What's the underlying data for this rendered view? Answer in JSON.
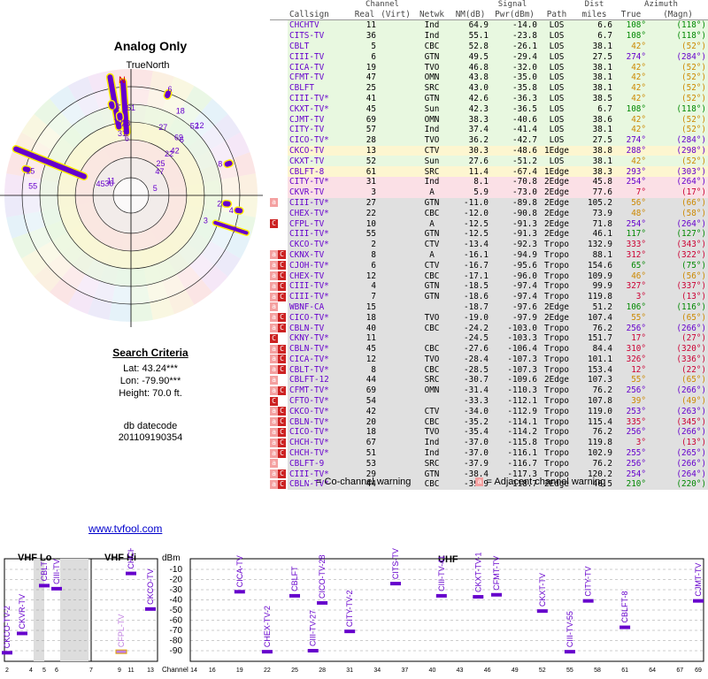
{
  "left": {
    "title": "Analog Only",
    "true_north": "TrueNorth",
    "north_letter": "N",
    "search_criteria": {
      "heading": "Search Criteria",
      "lat": "Lat: 43.24***",
      "lon": "Lon: -79.90***",
      "height": "Height: 70.0 ft."
    },
    "db_datecode_label": "db datecode",
    "db_datecode_value": "201109190354",
    "link": "www.tvfool.com"
  },
  "polar_labels": [
    {
      "t": "7",
      "az": 108,
      "r": 0.86
    },
    {
      "t": "3",
      "az": 108,
      "r": 0.62
    },
    {
      "t": "4",
      "az": 98,
      "r": 0.8
    },
    {
      "t": "2",
      "az": 95,
      "r": 0.7
    },
    {
      "t": "8",
      "az": 70,
      "r": 0.75
    },
    {
      "t": "52",
      "az": 42,
      "r": 0.75
    },
    {
      "t": "12",
      "az": 44,
      "r": 0.78
    },
    {
      "t": "6",
      "az": 42,
      "r": 0.6
    },
    {
      "t": "69",
      "az": 39,
      "r": 0.6
    },
    {
      "t": "42",
      "az": 44,
      "r": 0.5
    },
    {
      "t": "22",
      "az": 42,
      "r": 0.45
    },
    {
      "t": "18",
      "az": 30,
      "r": 0.78
    },
    {
      "t": "25",
      "az": 42,
      "r": 0.35
    },
    {
      "t": "27",
      "az": 25,
      "r": 0.6
    },
    {
      "t": "47",
      "az": 49,
      "r": 0.3
    },
    {
      "t": "6",
      "az": 20,
      "r": 0.9
    },
    {
      "t": "5",
      "az": 72,
      "r": 0.2
    },
    {
      "t": "61",
      "az": 0,
      "r": 0.7
    },
    {
      "t": "13",
      "az": -10,
      "r": 0.72
    },
    {
      "t": "28",
      "az": -4,
      "r": 0.58
    },
    {
      "t": "6",
      "az": -4,
      "r": 0.46
    },
    {
      "t": "11",
      "az": -52,
      "r": 0.2
    },
    {
      "t": "36",
      "az": -60,
      "r": 0.2
    },
    {
      "t": "45",
      "az": -68,
      "r": 0.26
    },
    {
      "t": "15",
      "az": -76,
      "r": 0.82
    },
    {
      "t": "55",
      "az": -84,
      "r": 0.78
    },
    {
      "t": "10",
      "az": -10,
      "r": 0.6
    },
    {
      "t": "31",
      "az": -8,
      "r": 0.5
    }
  ],
  "table": {
    "headers": {
      "group_channel": "Channel",
      "group_signal": "Signal",
      "group_azimuth": "Azimuth",
      "callsign": "Callsign",
      "real": "Real",
      "virt": "(Virt)",
      "network": "Netwk",
      "nm": "NM(dB)",
      "pwr": "Pwr(dBm)",
      "path": "Path",
      "dist_top": "Dist",
      "dist": "miles",
      "true": "True",
      "magn": "(Magn)"
    },
    "rows": [
      [
        "",
        "CHCHTV",
        "11",
        "",
        "Ind",
        "64.9",
        "-14.0",
        "LOS",
        "6.6",
        "108°",
        "(118°)"
      ],
      [
        "",
        "CITS-TV",
        "36",
        "",
        "Ind",
        "55.1",
        "-23.8",
        "LOS",
        "6.7",
        "108°",
        "(118°)"
      ],
      [
        "",
        "CBLT",
        "5",
        "",
        "CBC",
        "52.8",
        "-26.1",
        "LOS",
        "38.1",
        "42°",
        "(52°)"
      ],
      [
        "",
        "CIII-TV",
        "6",
        "",
        "GTN",
        "49.5",
        "-29.4",
        "LOS",
        "27.5",
        "274°",
        "(284°)"
      ],
      [
        "",
        "CICA-TV",
        "19",
        "",
        "TVO",
        "46.8",
        "-32.0",
        "LOS",
        "38.1",
        "42°",
        "(52°)"
      ],
      [
        "",
        "CFMT-TV",
        "47",
        "",
        "OMN",
        "43.8",
        "-35.0",
        "LOS",
        "38.1",
        "42°",
        "(52°)"
      ],
      [
        "",
        "CBLFT",
        "25",
        "",
        "SRC",
        "43.0",
        "-35.8",
        "LOS",
        "38.1",
        "42°",
        "(52°)"
      ],
      [
        "",
        "CIII-TV*",
        "41",
        "",
        "GTN",
        "42.6",
        "-36.3",
        "LOS",
        "38.5",
        "42°",
        "(52°)"
      ],
      [
        "",
        "CKXT-TV*",
        "45",
        "",
        "Sun",
        "42.3",
        "-36.5",
        "LOS",
        "6.7",
        "108°",
        "(118°)"
      ],
      [
        "",
        "CJMT-TV",
        "69",
        "",
        "OMN",
        "38.3",
        "-40.6",
        "LOS",
        "38.6",
        "42°",
        "(52°)"
      ],
      [
        "",
        "CITY-TV",
        "57",
        "",
        "Ind",
        "37.4",
        "-41.4",
        "LOS",
        "38.1",
        "42°",
        "(52°)"
      ],
      [
        "",
        "CICO-TV*",
        "28",
        "",
        "TVO",
        "36.2",
        "-42.7",
        "LOS",
        "27.5",
        "274°",
        "(284°)"
      ],
      [
        "",
        "CKCO-TV",
        "13",
        "",
        "CTV",
        "30.3",
        "-48.6",
        "1Edge",
        "38.8",
        "288°",
        "(298°)"
      ],
      [
        "",
        "CKXT-TV",
        "52",
        "",
        "Sun",
        "27.6",
        "-51.2",
        "LOS",
        "38.1",
        "42°",
        "(52°)"
      ],
      [
        "",
        "CBLFT-8",
        "61",
        "",
        "SRC",
        "11.4",
        "-67.4",
        "1Edge",
        "38.3",
        "293°",
        "(303°)"
      ],
      [
        "",
        "CITY-TV*",
        "31",
        "",
        "Ind",
        "8.1",
        "-70.8",
        "2Edge",
        "45.8",
        "254°",
        "(264°)"
      ],
      [
        "",
        "CKVR-TV",
        "3",
        "",
        "A",
        "5.9",
        "-73.0",
        "2Edge",
        "77.6",
        "7°",
        "(17°)"
      ],
      [
        "a",
        "CIII-TV*",
        "27",
        "",
        "GTN",
        "-11.0",
        "-89.8",
        "2Edge",
        "105.2",
        "56°",
        "(66°)"
      ],
      [
        "",
        "CHEX-TV*",
        "22",
        "",
        "CBC",
        "-12.0",
        "-90.8",
        "2Edge",
        "73.9",
        "48°",
        "(58°)"
      ],
      [
        "c",
        "CFPL-TV",
        "10",
        "",
        "A",
        "-12.5",
        "-91.3",
        "2Edge",
        "71.8",
        "254°",
        "(264°)"
      ],
      [
        "",
        "CIII-TV*",
        "55",
        "",
        "GTN",
        "-12.5",
        "-91.3",
        "2Edge",
        "46.1",
        "117°",
        "(127°)"
      ],
      [
        "",
        "CKCO-TV*",
        "2",
        "",
        "CTV",
        "-13.4",
        "-92.3",
        "Tropo",
        "132.9",
        "333°",
        "(343°)"
      ],
      [
        "ac",
        "CKNX-TV",
        "8",
        "",
        "A",
        "-16.1",
        "-94.9",
        "Tropo",
        "88.1",
        "312°",
        "(322°)"
      ],
      [
        "ac",
        "CJOH-TV*",
        "6",
        "",
        "CTV",
        "-16.7",
        "-95.6",
        "Tropo",
        "154.6",
        "65°",
        "(75°)"
      ],
      [
        "ac",
        "CHEX-TV",
        "12",
        "",
        "CBC",
        "-17.1",
        "-96.0",
        "Tropo",
        "109.9",
        "46°",
        "(56°)"
      ],
      [
        "ac",
        "CIII-TV*",
        "4",
        "",
        "GTN",
        "-18.5",
        "-97.4",
        "Tropo",
        "99.9",
        "327°",
        "(337°)"
      ],
      [
        "ac",
        "CIII-TV*",
        "7",
        "",
        "GTN",
        "-18.6",
        "-97.4",
        "Tropo",
        "119.8",
        "3°",
        "(13°)"
      ],
      [
        "a",
        "WBNF-CA",
        "15",
        "",
        "",
        "-18.7",
        "-97.6",
        "2Edge",
        "51.2",
        "106°",
        "(116°)"
      ],
      [
        "ac",
        "CICO-TV*",
        "18",
        "",
        "TVO",
        "-19.0",
        "-97.9",
        "2Edge",
        "107.4",
        "55°",
        "(65°)"
      ],
      [
        "ac",
        "CBLN-TV",
        "40",
        "",
        "CBC",
        "-24.2",
        "-103.0",
        "Tropo",
        "76.2",
        "256°",
        "(266°)"
      ],
      [
        "c",
        "CKNY-TV*",
        "11",
        "",
        "",
        "-24.5",
        "-103.3",
        "Tropo",
        "151.7",
        "17°",
        "(27°)"
      ],
      [
        "ac",
        "CBLN-TV*",
        "45",
        "",
        "CBC",
        "-27.6",
        "-106.4",
        "Tropo",
        "84.4",
        "310°",
        "(320°)"
      ],
      [
        "ac",
        "CICA-TV*",
        "12",
        "",
        "TVO",
        "-28.4",
        "-107.3",
        "Tropo",
        "101.1",
        "326°",
        "(336°)"
      ],
      [
        "ac",
        "CBLT-TV*",
        "8",
        "",
        "CBC",
        "-28.5",
        "-107.3",
        "Tropo",
        "153.4",
        "12°",
        "(22°)"
      ],
      [
        "a",
        "CBLFT-12",
        "44",
        "",
        "SRC",
        "-30.7",
        "-109.6",
        "2Edge",
        "107.3",
        "55°",
        "(65°)"
      ],
      [
        "ac",
        "CFMT-TV*",
        "69",
        "",
        "OMN",
        "-31.4",
        "-110.3",
        "Tropo",
        "76.2",
        "256°",
        "(266°)"
      ],
      [
        "c",
        "CFTO-TV*",
        "54",
        "",
        "",
        "-33.3",
        "-112.1",
        "Tropo",
        "107.8",
        "39°",
        "(49°)"
      ],
      [
        "ac",
        "CKCO-TV*",
        "42",
        "",
        "CTV",
        "-34.0",
        "-112.9",
        "Tropo",
        "119.0",
        "253°",
        "(263°)"
      ],
      [
        "ac",
        "CBLN-TV*",
        "20",
        "",
        "CBC",
        "-35.2",
        "-114.1",
        "Tropo",
        "115.4",
        "335°",
        "(345°)"
      ],
      [
        "ac",
        "CICO-TV*",
        "18",
        "",
        "TVO",
        "-35.4",
        "-114.2",
        "Tropo",
        "76.2",
        "256°",
        "(266°)"
      ],
      [
        "ac",
        "CHCH-TV*",
        "67",
        "",
        "Ind",
        "-37.0",
        "-115.8",
        "Tropo",
        "119.8",
        "3°",
        "(13°)"
      ],
      [
        "ac",
        "CHCH-TV*",
        "51",
        "",
        "Ind",
        "-37.0",
        "-116.1",
        "Tropo",
        "102.9",
        "255°",
        "(265°)"
      ],
      [
        "a",
        "CBLFT-9",
        "53",
        "",
        "SRC",
        "-37.9",
        "-116.7",
        "Tropo",
        "76.2",
        "256°",
        "(266°)"
      ],
      [
        "ac",
        "CIII-TV*",
        "29",
        "",
        "GTN",
        "-38.4",
        "-117.3",
        "Tropo",
        "120.2",
        "254°",
        "(264°)"
      ],
      [
        "ac",
        "CBLN-TV*",
        "44",
        "",
        "CBC",
        "-39.9",
        "-118.7",
        "2Edge",
        "40.5",
        "210°",
        "(220°)"
      ]
    ]
  },
  "legend": {
    "cochannel": "= Co-channel warning",
    "adjacent": "= Adjacent channel warning",
    "c": "C",
    "a": "a"
  },
  "spectrum": {
    "vhf_lo": "VHF Lo",
    "vhf_hi": "VHF Hi",
    "uhf": "UHF",
    "dbm": "dBm",
    "channel": "Channel",
    "y_ticks": [
      "-10",
      "-20",
      "-30",
      "-40",
      "-50",
      "-60",
      "-70",
      "-80",
      "-90"
    ],
    "vhf_ticks": [
      "2",
      "4",
      "5",
      "6",
      "7",
      "9",
      "11",
      "13"
    ],
    "uhf_ticks": [
      "14",
      "16",
      "19",
      "22",
      "25",
      "28",
      "31",
      "34",
      "37",
      "40",
      "43",
      "46",
      "49",
      "52",
      "55",
      "58",
      "61",
      "64",
      "67",
      "69"
    ],
    "stations": [
      {
        "label": "CKCO-TV-2",
        "ch": 2,
        "dbm": -92,
        "band": "lo"
      },
      {
        "label": "CKVR-TV",
        "ch": 3,
        "dbm": -73,
        "band": "lo"
      },
      {
        "label": "CBLT",
        "ch": 5,
        "dbm": -26,
        "band": "lo"
      },
      {
        "label": "CIII-TV",
        "ch": 6,
        "dbm": -29,
        "band": "lo"
      },
      {
        "label": "CFPL-TV",
        "ch": 10,
        "dbm": -91,
        "band": "hi"
      },
      {
        "label": "CHCHTV",
        "ch": 11,
        "dbm": -14,
        "band": "hi"
      },
      {
        "label": "CKCO-TV",
        "ch": 13,
        "dbm": -49,
        "band": "hi"
      },
      {
        "label": "CICA-TV",
        "ch": 19,
        "dbm": -32,
        "band": "uhf"
      },
      {
        "label": "CHEX-TV-2",
        "ch": 22,
        "dbm": -91,
        "band": "uhf"
      },
      {
        "label": "CBLFT",
        "ch": 25,
        "dbm": -36,
        "band": "uhf"
      },
      {
        "label": "CIII-TV-27",
        "ch": 27,
        "dbm": -90,
        "band": "uhf"
      },
      {
        "label": "CICO-TV-28",
        "ch": 28,
        "dbm": -43,
        "band": "uhf"
      },
      {
        "label": "CITY-TV-2",
        "ch": 31,
        "dbm": -71,
        "band": "uhf"
      },
      {
        "label": "CITS-TV",
        "ch": 36,
        "dbm": -24,
        "band": "uhf"
      },
      {
        "label": "CIII-TV-41",
        "ch": 41,
        "dbm": -36,
        "band": "uhf"
      },
      {
        "label": "CKXT-TV-1",
        "ch": 45,
        "dbm": -37,
        "band": "uhf"
      },
      {
        "label": "CFMT-TV",
        "ch": 47,
        "dbm": -35,
        "band": "uhf"
      },
      {
        "label": "CKXT-TV",
        "ch": 52,
        "dbm": -51,
        "band": "uhf"
      },
      {
        "label": "CIII-TV-55",
        "ch": 55,
        "dbm": -91,
        "band": "uhf"
      },
      {
        "label": "CITY-TV",
        "ch": 57,
        "dbm": -41,
        "band": "uhf"
      },
      {
        "label": "CBLFT-8",
        "ch": 61,
        "dbm": -67,
        "band": "uhf"
      },
      {
        "label": "CJMT-TV",
        "ch": 69,
        "dbm": -41,
        "band": "uhf"
      }
    ]
  },
  "colors": {
    "purple": "#6600cc",
    "yellow": "#ffee00",
    "green_row": "#e8f8e0",
    "yellow_row": "#fdf6d0",
    "pink_row": "#fbe0e6",
    "gray_row": "#e0e0e0",
    "cochan": "#cc2222",
    "adj": "#f4a0a0"
  }
}
